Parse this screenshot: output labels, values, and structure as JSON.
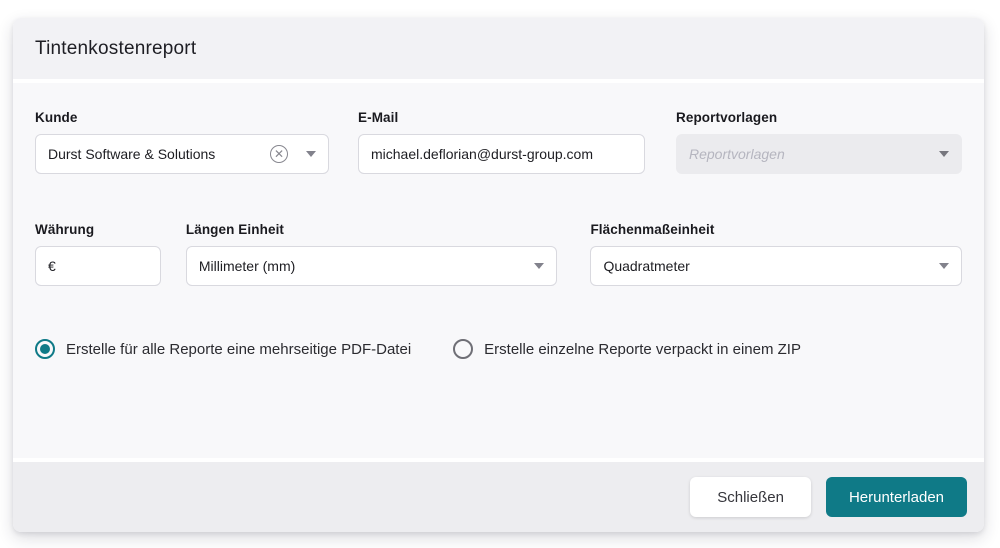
{
  "dialog": {
    "title": "Tintenkostenreport",
    "form": {
      "kunde": {
        "label": "Kunde",
        "value": "Durst Software & Solutions",
        "clear_icon": "circle-x-icon",
        "chevron_icon": "chevron-down-icon"
      },
      "email": {
        "label": "E-Mail",
        "value": "michael.deflorian@durst-group.com"
      },
      "reportvorlagen": {
        "label": "Reportvorlagen",
        "placeholder": "Reportvorlagen",
        "disabled": true,
        "chevron_icon": "chevron-down-icon"
      },
      "waehrung": {
        "label": "Währung",
        "value": "€"
      },
      "laengen_einheit": {
        "label": "Längen Einheit",
        "value": "Millimeter (mm)",
        "chevron_icon": "chevron-down-icon"
      },
      "flaechenmasseinheit": {
        "label": "Flächenmaßeinheit",
        "value": "Quadratmeter",
        "chevron_icon": "chevron-down-icon"
      }
    },
    "radios": [
      {
        "label": "Erstelle für alle Reporte eine mehrseitige PDF-Datei",
        "selected": true
      },
      {
        "label": "Erstelle einzelne Reporte verpackt in einem ZIP",
        "selected": false
      }
    ],
    "footer": {
      "close_label": "Schließen",
      "download_label": "Herunterladen"
    },
    "colors": {
      "accent_teal": "#0f7a87",
      "header_bg": "#f2f2f5",
      "body_bg": "#f8f8fa",
      "footer_bg": "#ededf0",
      "input_border": "#d9d9df"
    }
  }
}
